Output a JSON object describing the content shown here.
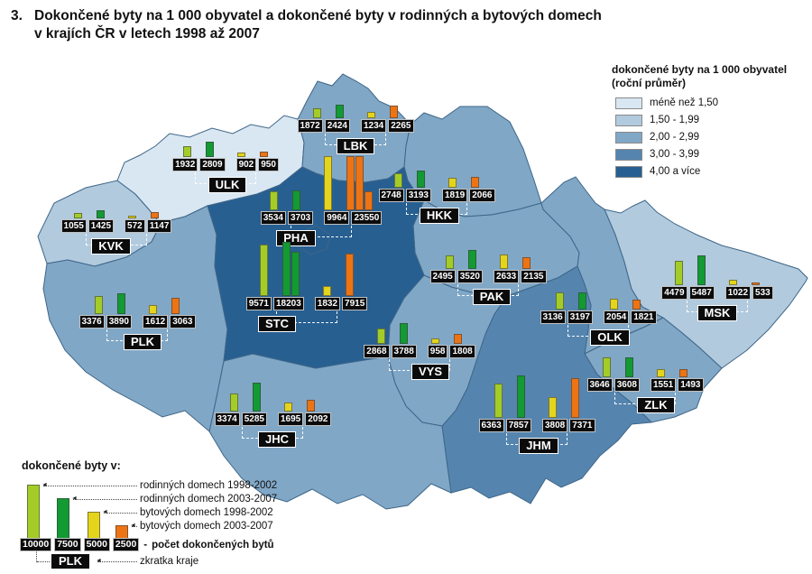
{
  "title": {
    "number": "3.",
    "line1": "Dokončené byty na 1 000 obyvatel a dokončené byty v rodinných a bytových domech",
    "line2": "v krajích ČR v letech 1998 až 2007"
  },
  "rate_legend": {
    "title1": "dokončené byty na 1 000 obyvatel",
    "title2": "(roční průměr)",
    "classes": [
      {
        "label": "méně než 1,50",
        "color": "#d9e7f2"
      },
      {
        "label": "1,50 - 1,99",
        "color": "#b1cade"
      },
      {
        "label": "2,00 - 2,99",
        "color": "#80a7c6"
      },
      {
        "label": "3,00 - 3,99",
        "color": "#5585af"
      },
      {
        "label": "4,00 a více",
        "color": "#275f91"
      }
    ]
  },
  "bar_legend": {
    "header": "dokončené byty v:",
    "items": [
      {
        "label": "rodinných domech 1998-2002",
        "color": "#a3cc28",
        "ref": 10000
      },
      {
        "label": "rodinných domech 2003-2007",
        "color": "#139a33",
        "ref": 7500
      },
      {
        "label": "bytových domech 1998-2002",
        "color": "#e4d41c",
        "ref": 5000
      },
      {
        "label": "bytových domech 2003-2007",
        "color": "#ed7414",
        "ref": 2500
      }
    ],
    "count_label": "počet dokončených bytů",
    "abbr_label": "zkratka kraje",
    "abbr_example": "PLK",
    "dash": "-"
  },
  "series_order": [
    "rodinných domech 1998-2002",
    "rodinných domech 2003-2007",
    "bytových domech 1998-2002",
    "bytových domech 2003-2007"
  ],
  "regions": [
    {
      "code": "KVK",
      "class": 2,
      "values": [
        1055,
        1425,
        572,
        1147
      ]
    },
    {
      "code": "ULK",
      "class": 1,
      "values": [
        1932,
        2809,
        902,
        950
      ]
    },
    {
      "code": "LBK",
      "class": 3,
      "values": [
        1872,
        2424,
        1234,
        2265
      ]
    },
    {
      "code": "PHA",
      "class": 5,
      "values": [
        3534,
        3703,
        9964,
        23550
      ]
    },
    {
      "code": "STC",
      "class": 5,
      "values": [
        9571,
        18203,
        1832,
        7915
      ]
    },
    {
      "code": "HKK",
      "class": 3,
      "values": [
        2748,
        3193,
        1819,
        2066
      ]
    },
    {
      "code": "PAK",
      "class": 3,
      "values": [
        2495,
        3520,
        2633,
        2135
      ]
    },
    {
      "code": "PLK",
      "class": 3,
      "values": [
        3376,
        3890,
        1612,
        3063
      ]
    },
    {
      "code": "VYS",
      "class": 3,
      "values": [
        2868,
        3788,
        958,
        1808
      ]
    },
    {
      "code": "OLK",
      "class": 3,
      "values": [
        3136,
        3197,
        2054,
        1821
      ]
    },
    {
      "code": "MSK",
      "class": 2,
      "values": [
        4479,
        5487,
        1022,
        533
      ]
    },
    {
      "code": "ZLK",
      "class": 3,
      "values": [
        3646,
        3608,
        1551,
        1493
      ]
    },
    {
      "code": "JHC",
      "class": 3,
      "values": [
        3374,
        5285,
        1695,
        2092
      ]
    },
    {
      "code": "JHM",
      "class": 4,
      "values": [
        6363,
        7857,
        3808,
        7371
      ]
    }
  ]
}
